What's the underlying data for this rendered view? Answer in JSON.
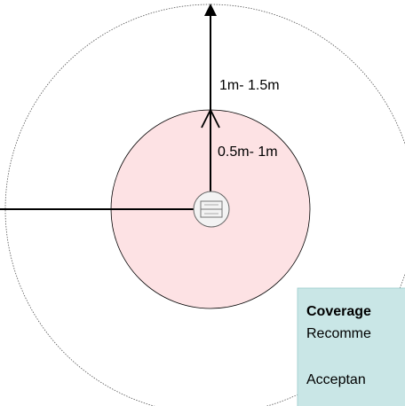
{
  "labels": {
    "outer_range": "1m- 1.5m",
    "inner_range": "0.5m- 1m"
  },
  "info_box": {
    "title": "Coverage",
    "line1": "Recomme",
    "line2": "Acceptan"
  }
}
